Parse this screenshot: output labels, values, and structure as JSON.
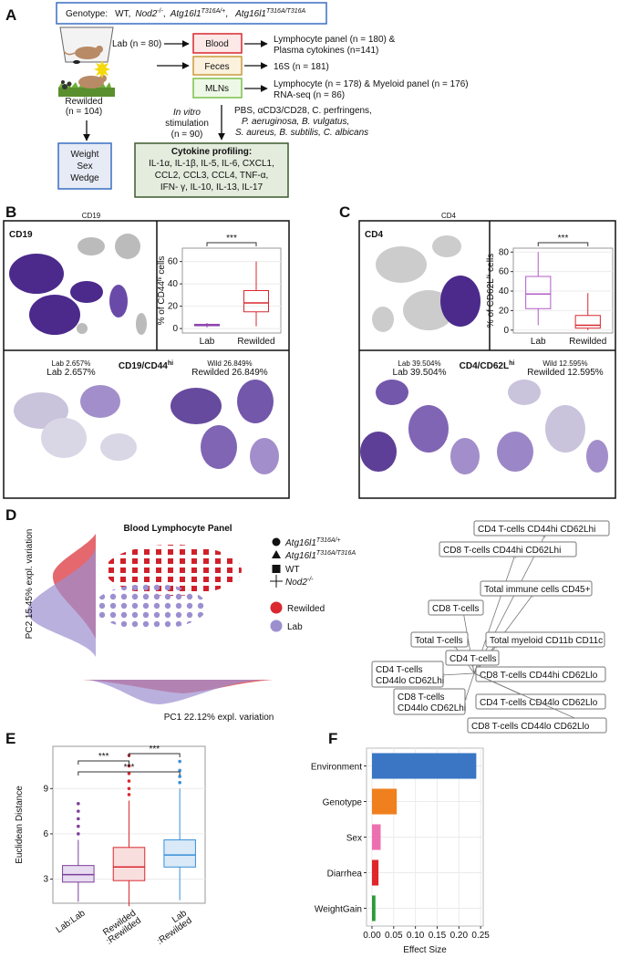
{
  "panel_letters": {
    "a": "A",
    "b": "B",
    "c": "C",
    "d": "D",
    "e": "E",
    "f": "F"
  },
  "panel_a": {
    "genotype": {
      "label": "Genotype:",
      "separator": ",",
      "items": [
        {
          "name": "WT"
        },
        {
          "name": "Nod2",
          "sup": "-/-"
        },
        {
          "name": "Atg16l1",
          "sup": "T316A/+"
        },
        {
          "name": "Atg16l1",
          "sup": "T316A/T316A"
        }
      ]
    },
    "lab": "Lab (n = 80)",
    "rewilded": [
      "Rewilded",
      "(n = 104)"
    ],
    "samples": [
      "Blood",
      "Feces",
      "MLNs"
    ],
    "outputs": [
      [
        "Lymphocyte panel  (n = 180) &",
        "Plasma cytokines  (n=141)"
      ],
      [
        "16S (n = 181)"
      ],
      [
        "Lymphocyte  (n = 178) & Myeloid panel  (n = 176)",
        "RNA-seq  (n = 86)"
      ]
    ],
    "stimulation": [
      "In vitro",
      "stimulation",
      "(n = 90)"
    ],
    "stimuli": [
      "PBS, αCD3/CD28, C. perfringens,",
      "P. aeruginosa,  B. vulgatus,",
      "S. aureus,  B. subtilis,  C. albicans"
    ],
    "metadata": [
      "Weight",
      "Sex",
      "Wedge"
    ],
    "cytokine_profiling": {
      "title": "Cytokine profiling:",
      "lines": [
        "IL-1α, IL-1β, IL-5, IL-6, CXCL1,",
        "CCL2, CCL3, CCL4, TNF-α,",
        "IFN- γ, IL-10, IL-13, IL-17"
      ]
    }
  },
  "panel_b": {
    "marker": "CD19",
    "umap_title": "CD19",
    "gate": {
      "base": "CD19/CD44",
      "sup": "hi"
    },
    "lab_small": "Lab 2.657%",
    "lab": "Lab 2.657%",
    "wild_small": "Wild 26.849%",
    "rewilded": "Rewilded 26.849%",
    "chart_data": {
      "type": "box",
      "ylabel": {
        "pre": "% of CD44",
        "sup": "hi",
        "post": " cells"
      },
      "categories": [
        "Lab",
        "Rewilded"
      ],
      "colors": [
        "#8e44ad",
        "#d9282f"
      ],
      "boxes": [
        {
          "low": 1,
          "q1": 2.5,
          "median": 3,
          "q3": 3.8,
          "high": 5
        },
        {
          "low": 2,
          "q1": 15,
          "median": 23,
          "q3": 34,
          "high": 60
        }
      ],
      "ylim": [
        -4,
        72
      ],
      "yticks": [
        0,
        20,
        40,
        60
      ],
      "significance": "***"
    }
  },
  "panel_c": {
    "marker": "CD4",
    "umap_title": "CD4",
    "gate": {
      "base": "CD4/CD62L",
      "sup": "hi"
    },
    "lab_small": "Lab 39.504%",
    "lab": "Lab 39.504%",
    "wild_small": "Wild 12.595%",
    "rewilded": "Rewilded 12.595%",
    "chart_data": {
      "type": "box",
      "ylabel": {
        "pre": "% of CD62L",
        "sup": "hi",
        "post": " cells"
      },
      "categories": [
        "Lab",
        "Rewilded"
      ],
      "colors": [
        "#b05cc6",
        "#d9282f"
      ],
      "boxes": [
        {
          "low": 5,
          "q1": 22,
          "median": 37,
          "q3": 55,
          "high": 80
        },
        {
          "low": 0,
          "q1": 2,
          "median": 5,
          "q3": 15,
          "high": 38
        }
      ],
      "ylim": [
        -3,
        84
      ],
      "yticks": [
        0,
        20,
        40,
        60,
        80
      ],
      "significance": "***"
    }
  },
  "panel_d": {
    "title": "Blood Lymphocyte Panel",
    "pc1": "PC1 22.12% expl. variation",
    "pc2": "PC2 15.45% expl. variation",
    "legend_shapes": [
      {
        "name": "Atg16l1",
        "sup": "T316A/+"
      },
      {
        "name": "Atg16l1",
        "sup": "T316A/T316A"
      },
      {
        "name": "WT"
      },
      {
        "name": "Nod2",
        "sup": "-/-"
      }
    ],
    "legend_groups": [
      {
        "name": "Rewilded",
        "color": "#d9282f"
      },
      {
        "name": "Lab",
        "color": "#9c8fd0"
      }
    ],
    "loadings": [
      [
        "CD4 T-cells CD44hi CD62Lhi"
      ],
      [
        "CD8 T-cells CD44hi CD62Lhi"
      ],
      [
        "Total immune cells CD45+"
      ],
      [
        "CD8 T-cells"
      ],
      [
        "Total T-cells"
      ],
      [
        "Total myeloid CD11b CD11c"
      ],
      [
        "CD4 T-cells"
      ],
      [
        "CD4 T-cells",
        "CD44lo CD62Lhi"
      ],
      [
        "CD8 T-cells CD44hi CD62Llo"
      ],
      [
        "CD8 T-cells",
        "CD44lo CD62Lhi"
      ],
      [
        "CD4 T-cells CD44lo CD62Llo"
      ],
      [
        "CD8 T-cells CD44lo CD62Llo"
      ]
    ]
  },
  "panel_e": {
    "chart_data": {
      "type": "box",
      "ylabel": "Euclidean Distance",
      "categories": [
        [
          "Lab:Lab"
        ],
        [
          "Rewilded",
          ":Rewilded"
        ],
        [
          "Lab",
          ":Rewilded"
        ]
      ],
      "colors": [
        "#7b3f9b",
        "#d9282f",
        "#3a8fd8"
      ],
      "fill_colors": [
        "#e8dcf0",
        "#f9dede",
        "#d9e9f7"
      ],
      "boxes": [
        {
          "low": 1.5,
          "q1": 2.8,
          "median": 3.3,
          "q3": 3.9,
          "high": 5.6
        },
        {
          "low": 1.2,
          "q1": 2.9,
          "median": 3.8,
          "q3": 5.1,
          "high": 8.2
        },
        {
          "low": 1.6,
          "q1": 3.8,
          "median": 4.6,
          "q3": 5.6,
          "high": 9
        }
      ],
      "outliers": [
        [
          6,
          6.5,
          7,
          7.5,
          8
        ],
        [
          8.6,
          9,
          9.5,
          10,
          10.5,
          11.2
        ],
        [
          9.4,
          9.8,
          10.2,
          10.8
        ]
      ],
      "ylim": [
        1.4,
        11.8
      ],
      "yticks": [
        3,
        6,
        9
      ],
      "grid": true,
      "significance": [
        "***",
        "***",
        "***"
      ]
    }
  },
  "panel_f": {
    "chart_data": {
      "type": "hbar",
      "xlabel": "Effect Size",
      "categories": [
        "Environment",
        "Genotype",
        "Sex",
        "Diarrhea",
        "WeightGain"
      ],
      "values": [
        0.24,
        0.057,
        0.02,
        0.015,
        0.008
      ],
      "colors": [
        "#3a76c4",
        "#f07f1e",
        "#ee6fb0",
        "#e0262b",
        "#2e9a3a"
      ],
      "xlim": [
        -0.0125,
        0.256
      ],
      "xticks": [
        {
          "value": 0,
          "label": "0.00"
        },
        0.05,
        {
          "value": 0.1,
          "label": "0.10"
        },
        0.15,
        {
          "value": 0.2,
          "label": "0.20"
        },
        0.25
      ],
      "grid": true
    }
  }
}
